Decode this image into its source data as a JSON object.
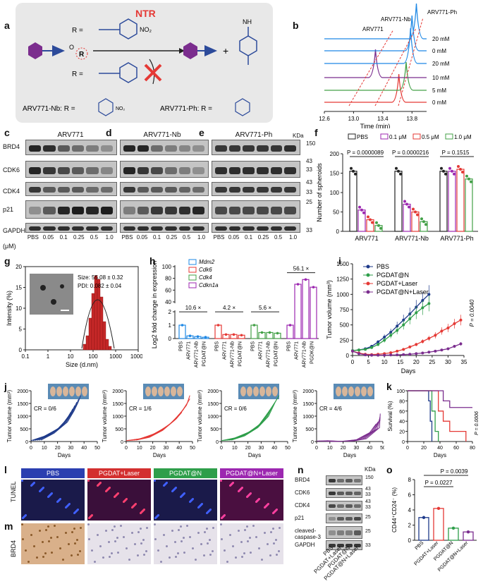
{
  "panels": {
    "a": "a",
    "b": "b",
    "c": "c",
    "d": "d",
    "e": "e",
    "f": "f",
    "g": "g",
    "h": "h",
    "i": "i",
    "j": "j",
    "k": "k",
    "l": "l",
    "m": "m",
    "n": "n",
    "o": "o"
  },
  "panel_a": {
    "enzyme": "NTR",
    "r_eq": "R =",
    "nh": "NH",
    "plus": "+",
    "label_nb": "ARV771-Nb:  R =",
    "label_ph": "ARV771-Ph:  R =",
    "no2": "NO₂",
    "o": "O",
    "r": "R",
    "colors": {
      "box": "#e8e8e8",
      "purple": "#7b2d8e",
      "blue": "#2c4a9a",
      "red": "#e53935"
    }
  },
  "chart_b": {
    "type": "line",
    "xlabel": "Time (min)",
    "xticks": [
      "12.6",
      "13.0",
      "13.4",
      "13.8"
    ],
    "xlim": [
      12.6,
      14.0
    ],
    "compounds": [
      "ARV771",
      "ARV771-Nb",
      "ARV771-Ph"
    ],
    "traces": [
      {
        "label": "0 mM",
        "color": "#e53935",
        "peak": 13.62
      },
      {
        "label": "5 mM",
        "color": "#43a047",
        "peak": 13.72
      },
      {
        "label": "10 mM",
        "color": "#7b2d8e",
        "peak": 13.3
      },
      {
        "label": "20 mM",
        "color": "#1e88e5",
        "peak": 13.78
      },
      {
        "label": "0 mM",
        "color": "#1e88e5",
        "peak": 13.8
      },
      {
        "label": "20 mM",
        "color": "#1e88e5",
        "peak": 13.86
      }
    ]
  },
  "western": {
    "c_title": "ARV771",
    "d_title": "ARV771-Nb",
    "e_title": "ARV771-Ph",
    "rows": [
      "BRD4",
      "CDK6",
      "CDK4",
      "p21",
      "GAPDH"
    ],
    "kda_label": "KDa",
    "kda": [
      "150",
      "43",
      "33",
      "43",
      "33",
      "25",
      "33"
    ],
    "lanes_prefix": "(μM)",
    "lanes": [
      "PBS",
      "0.05",
      "0.1",
      "0.25",
      "0.5",
      "1.0"
    ]
  },
  "chart_f": {
    "type": "bar",
    "ylabel": "Number of spheroids",
    "yticks": [
      "0",
      "50",
      "100",
      "150",
      "200"
    ],
    "ylim": [
      0,
      200
    ],
    "categories": [
      "ARV771",
      "ARV771-Nb",
      "ARV771-Ph"
    ],
    "legend": [
      "PBS",
      "0.1 μM",
      "0.5 μM",
      "1.0 μM"
    ],
    "colors": [
      "#222222",
      "#9c27b0",
      "#e53935",
      "#43a047"
    ],
    "series": [
      {
        "name": "PBS",
        "values": [
          155,
          155,
          155
        ]
      },
      {
        "name": "0.1 μM",
        "values": [
          55,
          70,
          155
        ]
      },
      {
        "name": "0.5 μM",
        "values": [
          30,
          50,
          160
        ]
      },
      {
        "name": "1.0 μM",
        "values": [
          15,
          25,
          135
        ]
      }
    ],
    "pvalues": [
      "P = 0.0000089",
      "P = 0.0000216",
      "P = 0.1515"
    ]
  },
  "chart_g": {
    "type": "bar",
    "xlabel": "Size (d.nm)",
    "ylabel": "Intensity (%)",
    "xticks": [
      "0.1",
      "1",
      "10",
      "100",
      "1000",
      "10000"
    ],
    "yticks": [
      "0",
      "5",
      "10",
      "15",
      "20"
    ],
    "size": "Size: 55.08 ± 0.32",
    "pdi": "PDI: 0.082 ± 0.04"
  },
  "chart_h": {
    "type": "bar",
    "ylabel": "Log2 fold change in expression",
    "yticks": [
      "0",
      "1",
      "2",
      "40",
      "60",
      "80",
      "100"
    ],
    "legend": [
      "Mdm2",
      "Cdk6",
      "Cdk4",
      "Cdkn1a"
    ],
    "colors": [
      "#1e88e5",
      "#e53935",
      "#43a047",
      "#9c27b0"
    ],
    "groups": [
      "PBS",
      "ARV771",
      "ARV771-Nb",
      "PGDAT@N"
    ],
    "series": [
      {
        "name": "Mdm2",
        "values": [
          1.0,
          0.2,
          0.15,
          0.1
        ]
      },
      {
        "name": "Cdk6",
        "values": [
          1.0,
          0.3,
          0.3,
          0.25
        ]
      },
      {
        "name": "Cdk4",
        "values": [
          1.0,
          0.45,
          0.45,
          0.4
        ]
      },
      {
        "name": "Cdkn1a",
        "values": [
          1.0,
          70,
          78,
          65
        ]
      }
    ],
    "folds": [
      "10.6 ×",
      "4.2 ×",
      "5.6 ×",
      "56.1 ×"
    ],
    "xlabels_1": [
      "PBS",
      "ARV771",
      "ARV771-Nb",
      "PGDAT@N"
    ],
    "xlabels_4": [
      "PBS",
      "ARV771",
      "ARV771-Nb",
      "PGDK@N"
    ]
  },
  "chart_i": {
    "type": "line",
    "xlabel": "Days",
    "ylabel": "Tumor volume (mm³)",
    "xticks": [
      "0",
      "5",
      "10",
      "15",
      "20",
      "25",
      "30",
      "35"
    ],
    "yticks": [
      "0",
      "250",
      "500",
      "750",
      "1000",
      "1250",
      "1500"
    ],
    "xlim": [
      0,
      35
    ],
    "ylim": [
      0,
      1500
    ],
    "pvalue": "P = 0.0040",
    "series": [
      {
        "name": "PBS",
        "color": "#1e3a8a",
        "x": [
          0,
          2,
          4,
          6,
          8,
          10,
          12,
          14,
          16,
          18,
          20,
          22,
          24,
          25
        ],
        "y": [
          80,
          90,
          110,
          150,
          220,
          300,
          380,
          480,
          580,
          680,
          790,
          900,
          1000,
          0
        ]
      },
      {
        "name": "PGDAT@N",
        "color": "#2e9e4a",
        "x": [
          0,
          2,
          4,
          6,
          8,
          10,
          12,
          14,
          16,
          18,
          20,
          22,
          24,
          25
        ],
        "y": [
          80,
          90,
          100,
          130,
          180,
          250,
          330,
          410,
          500,
          600,
          700,
          780,
          850,
          0
        ]
      },
      {
        "name": "PGDAT+Laser",
        "color": "#e53935",
        "x": [
          0,
          2,
          4,
          6,
          8,
          10,
          12,
          14,
          16,
          18,
          20,
          22,
          24,
          26,
          28,
          30,
          32,
          34
        ],
        "y": [
          70,
          40,
          20,
          15,
          20,
          30,
          45,
          70,
          100,
          140,
          180,
          230,
          280,
          330,
          400,
          450,
          520,
          580
        ]
      },
      {
        "name": "PGDAT@N+Laser",
        "color": "#7b2d8e",
        "x": [
          0,
          2,
          4,
          6,
          8,
          10,
          12,
          14,
          16,
          18,
          20,
          22,
          24,
          26,
          28,
          30,
          32,
          34
        ],
        "y": [
          70,
          30,
          10,
          5,
          5,
          5,
          8,
          10,
          15,
          20,
          30,
          40,
          55,
          70,
          90,
          110,
          150,
          190
        ]
      }
    ]
  },
  "chart_j": {
    "type": "line",
    "xlabel": "Days",
    "ylabel": "Tumor volume (mm³)",
    "xticks": [
      "0",
      "10",
      "20",
      "30",
      "40",
      "50"
    ],
    "yticks": [
      "0",
      "500",
      "1000",
      "1500",
      "2000"
    ],
    "panels": [
      {
        "cr": "CR = 0/6",
        "color": "#1e3a8a"
      },
      {
        "cr": "CR = 1/6",
        "color": "#e53935"
      },
      {
        "cr": "CR = 0/6",
        "color": "#2e9e4a"
      },
      {
        "cr": "CR = 4/6",
        "color": "#7b2d8e"
      }
    ]
  },
  "chart_k": {
    "type": "line",
    "xlabel": "Days",
    "ylabel": "Survival (%)",
    "xticks": [
      "0",
      "20",
      "40",
      "60",
      "80"
    ],
    "yticks": [
      "0",
      "20",
      "40",
      "60",
      "80",
      "100"
    ],
    "pvalue": "P = 0.0006",
    "series": [
      {
        "name": "PBS",
        "color": "#1e3a8a"
      },
      {
        "name": "PGDAT@N",
        "color": "#2e9e4a"
      },
      {
        "name": "PGDAT+Laser",
        "color": "#e53935"
      },
      {
        "name": "PGDAT@N+Laser",
        "color": "#7b2d8e"
      }
    ]
  },
  "panel_l": {
    "headers": [
      "PBS",
      "PGDAT+Laser",
      "PGDAT@N",
      "PGDAT@N+Laser"
    ],
    "header_colors": [
      "#2b3fb0",
      "#d32f2f",
      "#2e9e4a",
      "#9c27b0"
    ],
    "row_label": "TUNEL"
  },
  "panel_m": {
    "row_label": "BRD4"
  },
  "panel_n": {
    "rows": [
      "BRD4",
      "CDK6",
      "CDK4",
      "p21",
      "cleaved-\ncaspase-3",
      "GAPDH"
    ],
    "kda_label": "KDa",
    "kda": [
      "150",
      "43",
      "33",
      "43",
      "33",
      "25",
      "25",
      "33"
    ],
    "lanes": [
      "PBS",
      "PGDAT+Laser",
      "PGDAT@N",
      "PGDAT@N+Laser"
    ]
  },
  "chart_o": {
    "type": "bar",
    "ylabel": "CD44⁺CD24⁻ (%)",
    "yticks": [
      "0",
      "2",
      "4",
      "6",
      "8"
    ],
    "ylim": [
      0,
      8
    ],
    "categories": [
      "PBS",
      "PGDAT+Laser",
      "PGDAT@N",
      "PGDAT@N+Laser"
    ],
    "values": [
      3.0,
      4.2,
      1.6,
      1.1
    ],
    "colors": [
      "#1e3a8a",
      "#e53935",
      "#2e9e4a",
      "#7b2d8e"
    ],
    "pvalues": [
      "P = 0.0039",
      "P = 0.0227"
    ]
  }
}
